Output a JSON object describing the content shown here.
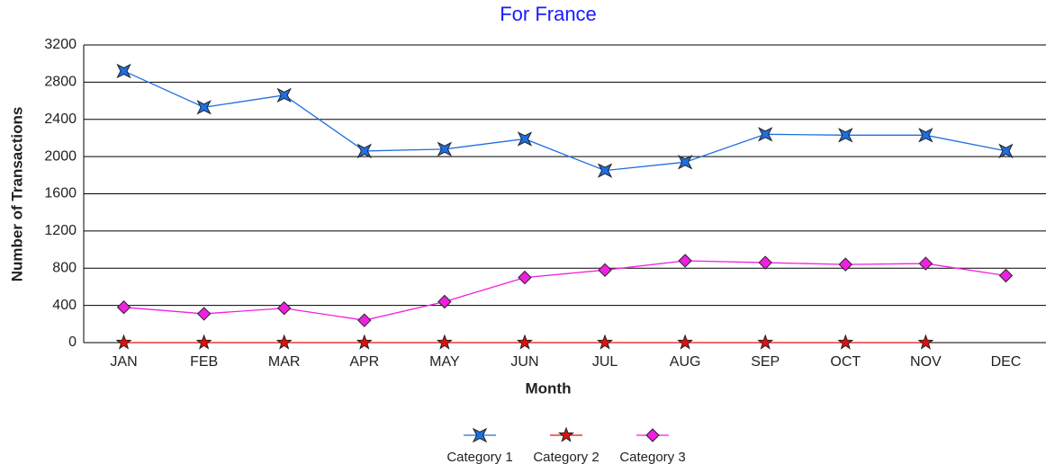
{
  "chart_data": {
    "type": "line",
    "title": "For France",
    "xlabel": "Month",
    "ylabel": "Number of Transactions",
    "categories": [
      "JAN",
      "FEB",
      "MAR",
      "APR",
      "MAY",
      "JUN",
      "JUL",
      "AUG",
      "SEP",
      "OCT",
      "NOV",
      "DEC"
    ],
    "series": [
      {
        "name": "Category 1",
        "color": "#1f6fe0",
        "marker": "xstar",
        "values": [
          2920,
          2530,
          2660,
          2060,
          2080,
          2190,
          1850,
          1940,
          2240,
          2230,
          2230,
          2060
        ]
      },
      {
        "name": "Category 2",
        "color": "#e01010",
        "marker": "star",
        "values": [
          0,
          0,
          0,
          0,
          0,
          0,
          0,
          0,
          0,
          0,
          0,
          null
        ]
      },
      {
        "name": "Category 3",
        "color": "#f020e0",
        "marker": "diamond",
        "values": [
          380,
          310,
          370,
          240,
          440,
          700,
          780,
          880,
          860,
          840,
          850,
          720
        ]
      }
    ],
    "ylim": [
      0,
      3200
    ],
    "yticks": [
      0,
      400,
      800,
      1200,
      1600,
      2000,
      2400,
      2800,
      3200
    ],
    "grid": true,
    "legend": "bottom"
  }
}
